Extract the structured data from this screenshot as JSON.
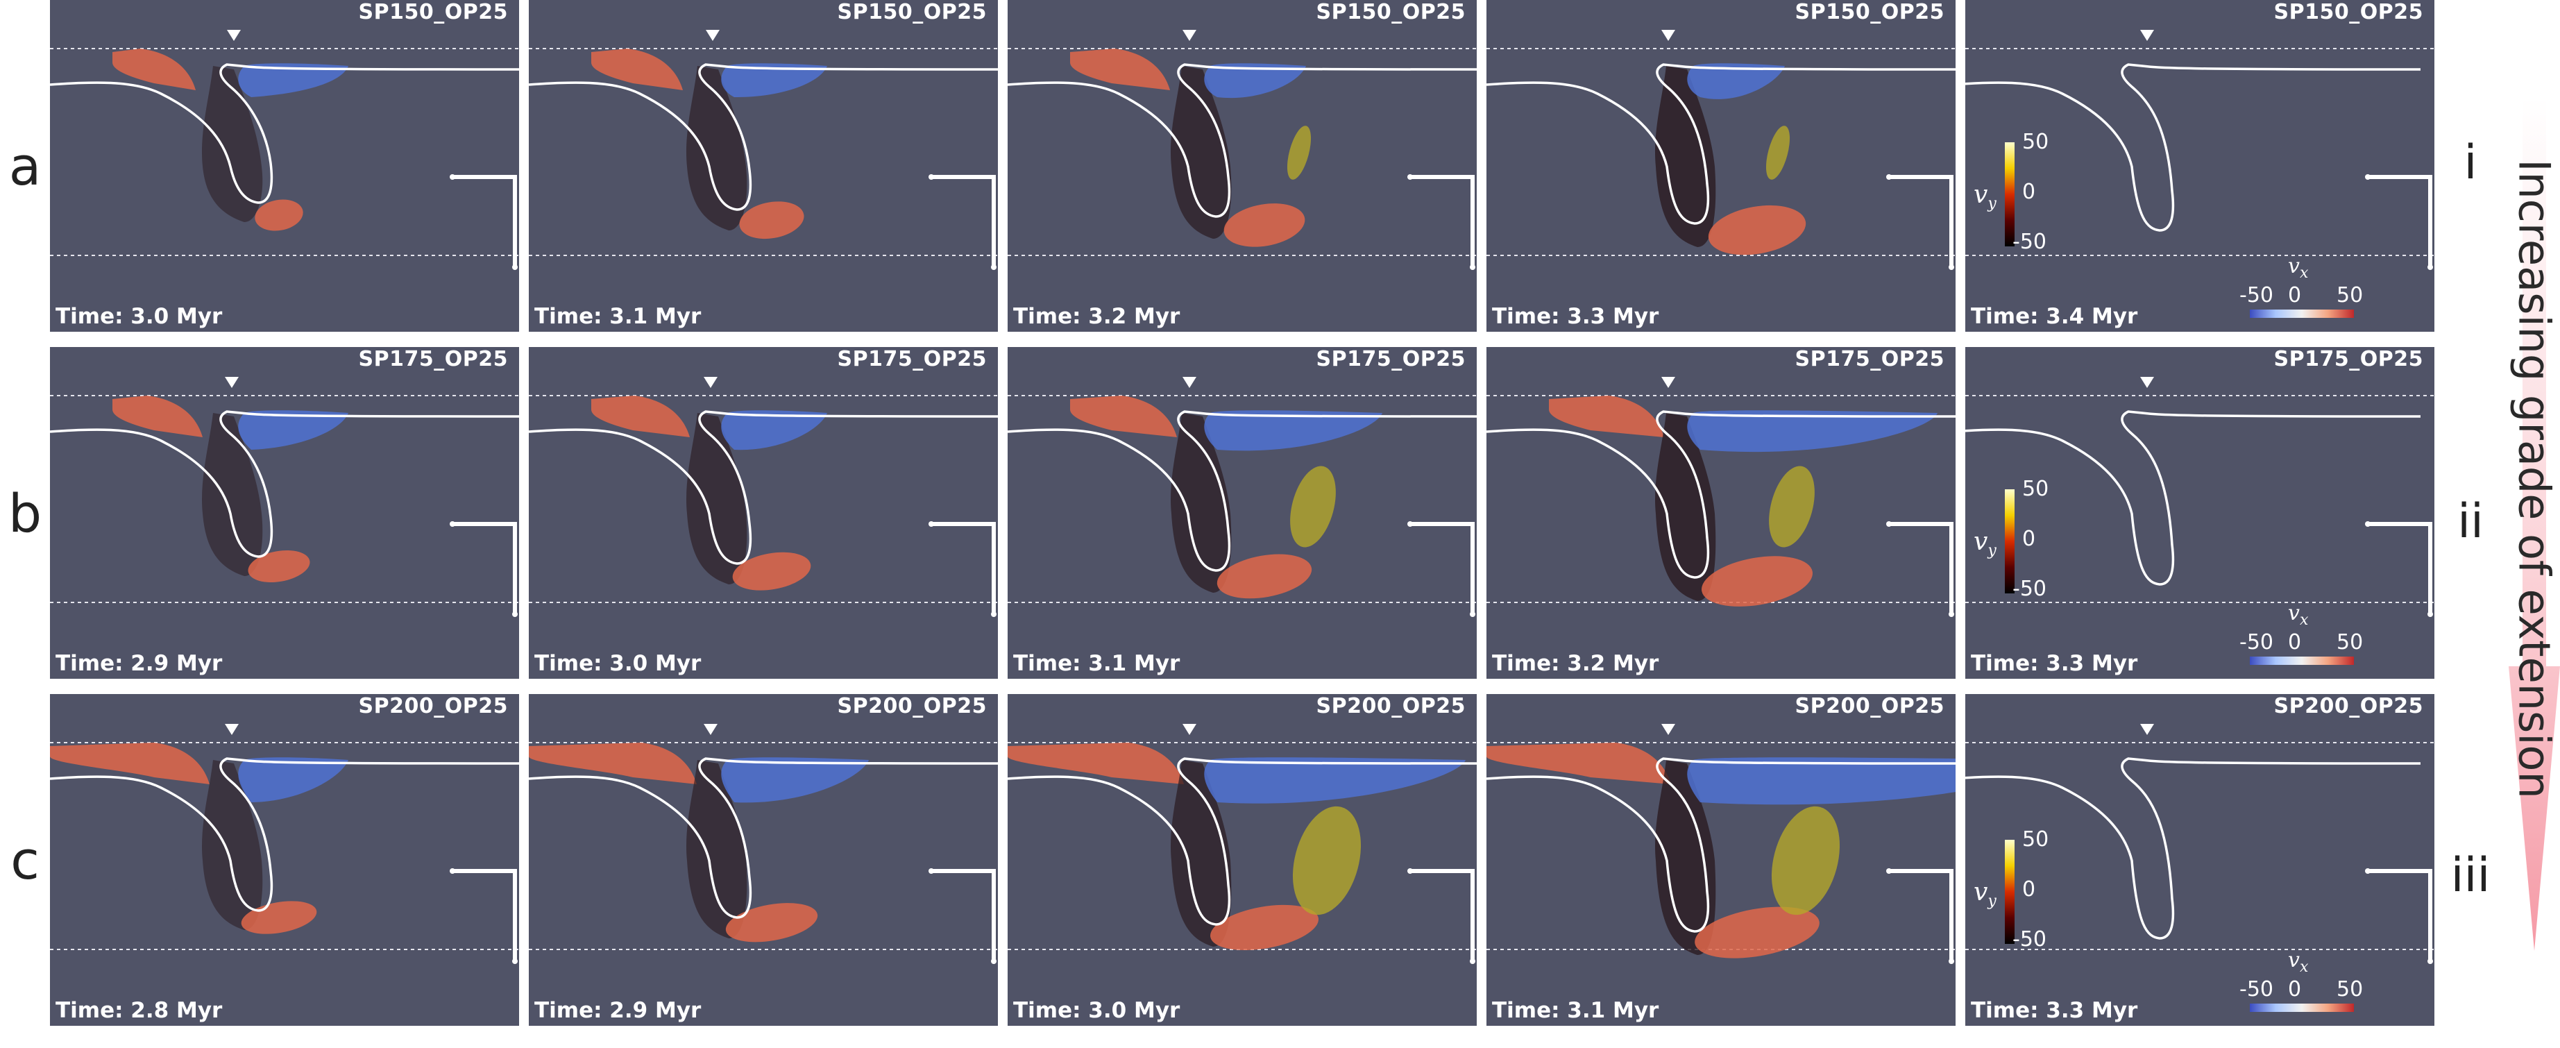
{
  "rows": [
    {
      "label": "a",
      "roman": "i",
      "panels": [
        {
          "name": "SP150_OP25",
          "time": "Time: 3.0 Myr"
        },
        {
          "name": "SP150_OP25",
          "time": "Time: 3.1 Myr"
        },
        {
          "name": "SP150_OP25",
          "time": "Time: 3.2 Myr"
        },
        {
          "name": "SP150_OP25",
          "time": "Time: 3.3 Myr"
        },
        {
          "name": "SP150_OP25",
          "time": "Time: 3.4 Myr"
        }
      ]
    },
    {
      "label": "b",
      "roman": "ii",
      "panels": [
        {
          "name": "SP175_OP25",
          "time": "Time: 2.9 Myr"
        },
        {
          "name": "SP175_OP25",
          "time": "Time: 3.0 Myr"
        },
        {
          "name": "SP175_OP25",
          "time": "Time: 3.1 Myr"
        },
        {
          "name": "SP175_OP25",
          "time": "Time: 3.2 Myr"
        },
        {
          "name": "SP175_OP25",
          "time": "Time: 3.3 Myr"
        }
      ]
    },
    {
      "label": "c",
      "roman": "iii",
      "panels": [
        {
          "name": "SP200_OP25",
          "time": "Time: 2.8 Myr"
        },
        {
          "name": "SP200_OP25",
          "time": "Time: 2.9 Myr"
        },
        {
          "name": "SP200_OP25",
          "time": "Time: 3.0 Myr"
        },
        {
          "name": "SP200_OP25",
          "time": "Time: 3.1 Myr"
        },
        {
          "name": "SP200_OP25",
          "time": "Time: 3.3 Myr"
        }
      ]
    }
  ],
  "colorbars": {
    "vy": {
      "symbol": "v",
      "subscript": "y",
      "ticks": [
        "50",
        "0",
        "-50"
      ]
    },
    "vx": {
      "symbol": "v",
      "subscript": "x",
      "ticks": [
        "-50",
        "0",
        "50"
      ]
    }
  },
  "arrow": {
    "label": "Increasing grade of extension",
    "color": "#f7a6b0"
  },
  "colors": {
    "panel_background": "#505367",
    "positive_vx": "#e0674a",
    "negative_vx": "#4f72d2",
    "negative_vy": "#2a1b20",
    "positive_vy": "#b4a82a"
  }
}
